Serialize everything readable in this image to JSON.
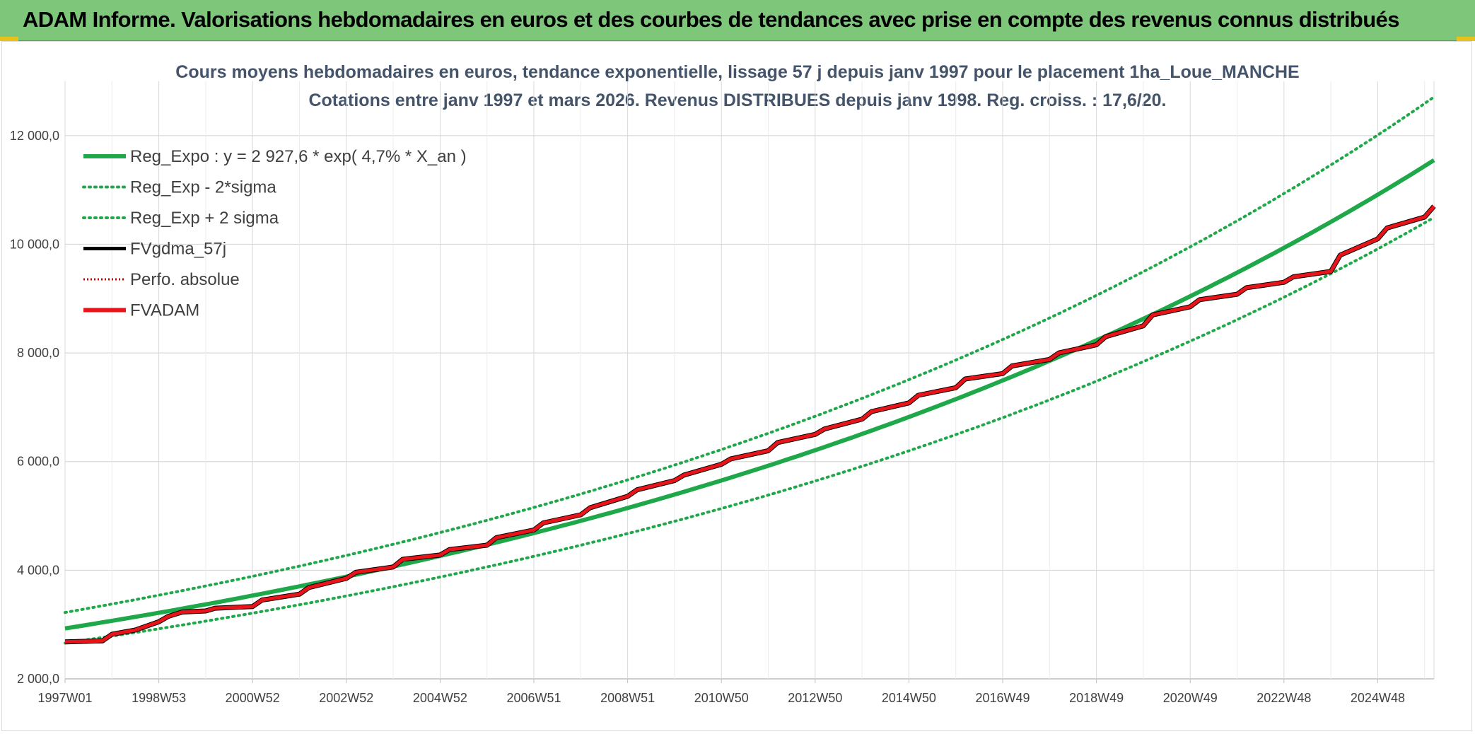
{
  "banner": {
    "title": "ADAM Informe. Valorisations hebdomadaires en euros et des courbes de tendances avec prise en compte des revenus connus distribués"
  },
  "colors": {
    "banner_bg": "#7dc67a",
    "reg_green": "#1fa84a",
    "fvadam_red": "#e8141a",
    "fvgdma_black": "#000000",
    "perfo_red": "#c00000",
    "grid": "#d9d9d9"
  },
  "chart_data": {
    "type": "line",
    "title_lines": [
      "Cours moyens hebdomadaires en euros, tendance exponentielle, lissage 57 j depuis janv 1997 pour le placement 1ha_Loue_MANCHE",
      "Cotations entre janv 1997 et mars 2026. Revenus DISTRIBUES depuis janv 1998. Reg. croiss. : 17,6/20."
    ],
    "x_start_year": 1997.0,
    "x_end_year": 2026.2,
    "x_ticks": [
      {
        "label": "1997W01",
        "year": 1997.0
      },
      {
        "label": "1998W53",
        "year": 1999.0
      },
      {
        "label": "2000W52",
        "year": 2001.0
      },
      {
        "label": "2002W52",
        "year": 2003.0
      },
      {
        "label": "2004W52",
        "year": 2005.0
      },
      {
        "label": "2006W51",
        "year": 2007.0
      },
      {
        "label": "2008W51",
        "year": 2009.0
      },
      {
        "label": "2010W50",
        "year": 2011.0
      },
      {
        "label": "2012W50",
        "year": 2013.0
      },
      {
        "label": "2014W50",
        "year": 2015.0
      },
      {
        "label": "2016W49",
        "year": 2017.0
      },
      {
        "label": "2018W49",
        "year": 2019.0
      },
      {
        "label": "2020W49",
        "year": 2021.0
      },
      {
        "label": "2022W48",
        "year": 2023.0
      },
      {
        "label": "2024W48",
        "year": 2025.0
      }
    ],
    "y_ticks": [
      {
        "label": "2 000,0",
        "value": 2000
      },
      {
        "label": "4 000,0",
        "value": 4000
      },
      {
        "label": "6 000,0",
        "value": 6000
      },
      {
        "label": "8 000,0",
        "value": 8000
      },
      {
        "label": "10 000,0",
        "value": 10000
      },
      {
        "label": "12 000,0",
        "value": 12000
      }
    ],
    "ylim": [
      2000,
      13000
    ],
    "grid": true,
    "legend_position": "top-left",
    "legend": [
      {
        "name": "Reg_Expo : y = 2 927,6 * exp( 4,7% *  X_an )",
        "style": "solid-thick",
        "color": "#1fa84a"
      },
      {
        "name": "Reg_Exp - 2*sigma",
        "style": "dotted",
        "color": "#1fa84a"
      },
      {
        "name": "Reg_Exp + 2 sigma",
        "style": "dotted",
        "color": "#1fa84a"
      },
      {
        "name": "FVgdma_57j",
        "style": "solid",
        "color": "#000000"
      },
      {
        "name": "Perfo. absolue",
        "style": "dotted-thin",
        "color": "#c00000"
      },
      {
        "name": "FVADAM",
        "style": "solid-thick",
        "color": "#e8141a"
      }
    ],
    "series": [
      {
        "name": "Reg_Expo : y = 2 927,6 * exp( 4,7% *  X_an )",
        "x": [
          1997.0,
          1999.0,
          2001.0,
          2003.0,
          2005.0,
          2007.0,
          2009.0,
          2011.0,
          2013.0,
          2015.0,
          2017.0,
          2019.0,
          2021.0,
          2023.0,
          2025.0,
          2026.2
        ],
        "y": [
          2928,
          3216,
          3533,
          3881,
          4264,
          4684,
          5145,
          5652,
          6209,
          6821,
          7493,
          8232,
          9043,
          9934,
          10913,
          11548
        ]
      },
      {
        "name": "Reg_Exp - 2*sigma",
        "x": [
          1997.0,
          1999.0,
          2001.0,
          2003.0,
          2005.0,
          2007.0,
          2009.0,
          2011.0,
          2013.0,
          2015.0,
          2017.0,
          2019.0,
          2021.0,
          2023.0,
          2025.0,
          2026.2
        ],
        "y": [
          2660,
          2922,
          3210,
          3526,
          3874,
          4256,
          4675,
          5136,
          5642,
          6198,
          6808,
          7479,
          8217,
          9026,
          9915,
          10493
        ]
      },
      {
        "name": "Reg_Exp + 2 sigma",
        "x": [
          1997.0,
          1999.0,
          2001.0,
          2003.0,
          2005.0,
          2007.0,
          2009.0,
          2011.0,
          2013.0,
          2015.0,
          2017.0,
          2019.0,
          2021.0,
          2023.0,
          2025.0,
          2026.2
        ],
        "y": [
          3222,
          3540,
          3888,
          4272,
          4693,
          5155,
          5663,
          6221,
          6834,
          7508,
          8247,
          9060,
          9953,
          10934,
          12011,
          12711
        ]
      },
      {
        "name": "FVADAM",
        "x": [
          1997.0,
          1997.8,
          1998.0,
          1998.5,
          1999.0,
          1999.2,
          1999.5,
          2000.0,
          2000.2,
          2001.0,
          2001.2,
          2002.0,
          2002.2,
          2003.0,
          2003.2,
          2004.0,
          2004.2,
          2005.0,
          2005.2,
          2006.0,
          2006.2,
          2007.0,
          2007.2,
          2008.0,
          2008.2,
          2009.0,
          2009.2,
          2010.0,
          2010.2,
          2011.0,
          2011.2,
          2012.0,
          2012.2,
          2013.0,
          2013.2,
          2014.0,
          2014.2,
          2015.0,
          2015.2,
          2016.0,
          2016.2,
          2017.0,
          2017.2,
          2018.0,
          2018.2,
          2019.0,
          2019.2,
          2020.0,
          2020.2,
          2021.0,
          2021.2,
          2022.0,
          2022.2,
          2023.0,
          2023.2,
          2024.0,
          2024.2,
          2025.0,
          2025.2,
          2026.0,
          2026.2
        ],
        "y": [
          2680,
          2700,
          2820,
          2900,
          3050,
          3150,
          3230,
          3250,
          3300,
          3330,
          3450,
          3560,
          3680,
          3850,
          3960,
          4060,
          4200,
          4280,
          4380,
          4460,
          4600,
          4740,
          4870,
          5020,
          5150,
          5360,
          5480,
          5650,
          5750,
          5950,
          6050,
          6200,
          6350,
          6500,
          6600,
          6780,
          6920,
          7080,
          7220,
          7360,
          7520,
          7620,
          7760,
          7880,
          8000,
          8150,
          8300,
          8500,
          8700,
          8850,
          8980,
          9080,
          9200,
          9300,
          9400,
          9500,
          9800,
          10100,
          10300,
          10500,
          10700
        ]
      }
    ]
  }
}
